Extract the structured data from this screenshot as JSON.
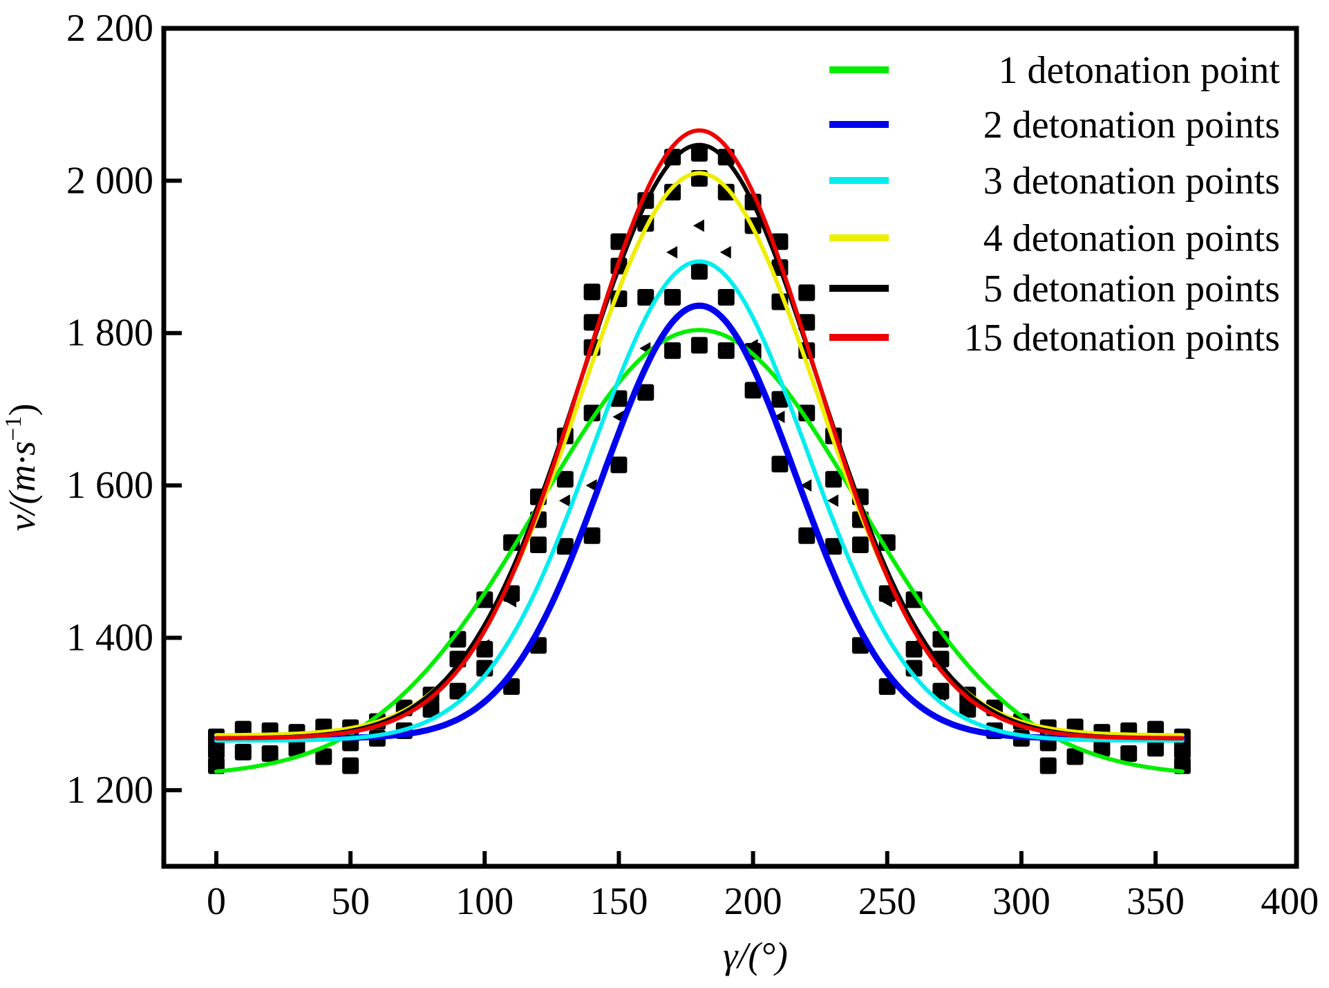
{
  "chart_data": {
    "type": "line",
    "title": "",
    "xlabel": "γ/(°)",
    "ylabel_main": "v/(m·s",
    "ylabel_sup": "−1",
    "ylabel_close": ")",
    "xlim": [
      -20,
      403
    ],
    "ylim": [
      1100,
      2200
    ],
    "grid": false,
    "legend_position": "top-right",
    "x_ticks": [
      0,
      50,
      100,
      150,
      200,
      250,
      300,
      350,
      400
    ],
    "x_tick_labels": [
      "0",
      "50",
      "100",
      "150",
      "200",
      "250",
      "300",
      "350",
      "400"
    ],
    "y_ticks": [
      1200,
      1400,
      1600,
      1800,
      2000,
      2200
    ],
    "y_tick_labels": [
      "1 200",
      "1 400",
      "1 600",
      "1 800",
      "2 000",
      "2 200"
    ],
    "series": [
      {
        "name": "1 detonation point",
        "color": "#00ee00",
        "model": {
          "base": 1218,
          "amplitude": 586,
          "center": 180,
          "sigma": 60
        }
      },
      {
        "name": "2 detonation points",
        "color": "#0000ee",
        "model": {
          "base": 1268,
          "amplitude": 568,
          "center": 180,
          "sigma": 36
        }
      },
      {
        "name": "3 detonation points",
        "color": "#00eeee",
        "model": {
          "base": 1265,
          "amplitude": 629,
          "center": 180,
          "sigma": 40
        }
      },
      {
        "name": "4 detonation points",
        "color": "#eeee00",
        "model": {
          "base": 1272,
          "amplitude": 738,
          "center": 180,
          "sigma": 44
        }
      },
      {
        "name": "5 detonation points",
        "color": "#000000",
        "model": {
          "base": 1268,
          "amplitude": 779,
          "center": 180,
          "sigma": 44
        }
      },
      {
        "name": "15 detonation points",
        "color": "#ee0000",
        "model": {
          "base": 1268,
          "amplitude": 798,
          "center": 180,
          "sigma": 43
        }
      }
    ],
    "x_range": [
      0,
      360
    ],
    "markers_square": [
      {
        "x": 0,
        "y": [
          1270,
          1252,
          1232
        ]
      },
      {
        "x": 10,
        "y": [
          1280,
          1250
        ]
      },
      {
        "x": 20,
        "y": [
          1278,
          1248
        ]
      },
      {
        "x": 30,
        "y": [
          1276,
          1255
        ]
      },
      {
        "x": 40,
        "y": [
          1283,
          1244
        ]
      },
      {
        "x": 50,
        "y": [
          1282,
          1262,
          1232
        ]
      },
      {
        "x": 60,
        "y": [
          1290,
          1268
        ]
      },
      {
        "x": 70,
        "y": [
          1308,
          1278
        ]
      },
      {
        "x": 80,
        "y": [
          1325,
          1306
        ]
      },
      {
        "x": 90,
        "y": [
          1398,
          1372,
          1330
        ]
      },
      {
        "x": 100,
        "y": [
          1450,
          1385,
          1360
        ]
      },
      {
        "x": 110,
        "y": [
          1525,
          1458,
          1336
        ]
      },
      {
        "x": 120,
        "y": [
          1585,
          1555,
          1522,
          1390
        ]
      },
      {
        "x": 130,
        "y": [
          1665,
          1608,
          1520
        ]
      },
      {
        "x": 140,
        "y": [
          1854,
          1814,
          1781,
          1695,
          1534
        ]
      },
      {
        "x": 150,
        "y": [
          1920,
          1888,
          1845,
          1714,
          1627
        ]
      },
      {
        "x": 160,
        "y": [
          1974,
          1944,
          1847,
          1722
        ]
      },
      {
        "x": 170,
        "y": [
          2031,
          1985,
          1847,
          1777
        ]
      },
      {
        "x": 180,
        "y": [
          2036,
          2003,
          1881,
          1784
        ]
      },
      {
        "x": 190,
        "y": [
          2031,
          1985,
          1847,
          1777
        ]
      },
      {
        "x": 200,
        "y": [
          1972,
          1941,
          1776,
          1725
        ]
      },
      {
        "x": 210,
        "y": [
          1920,
          1886,
          1841,
          1713,
          1628
        ]
      },
      {
        "x": 220,
        "y": [
          1853,
          1814,
          1777,
          1695,
          1534
        ]
      },
      {
        "x": 230,
        "y": [
          1665,
          1608,
          1520
        ]
      },
      {
        "x": 240,
        "y": [
          1585,
          1555,
          1522,
          1390
        ]
      },
      {
        "x": 250,
        "y": [
          1525,
          1458,
          1336
        ]
      },
      {
        "x": 260,
        "y": [
          1450,
          1385,
          1360
        ]
      },
      {
        "x": 270,
        "y": [
          1398,
          1372,
          1330
        ]
      },
      {
        "x": 280,
        "y": [
          1325,
          1306
        ]
      },
      {
        "x": 290,
        "y": [
          1308,
          1278
        ]
      },
      {
        "x": 300,
        "y": [
          1290,
          1268
        ]
      },
      {
        "x": 310,
        "y": [
          1282,
          1262,
          1232
        ]
      },
      {
        "x": 320,
        "y": [
          1283,
          1244
        ]
      },
      {
        "x": 330,
        "y": [
          1276,
          1255
        ]
      },
      {
        "x": 340,
        "y": [
          1278,
          1248
        ]
      },
      {
        "x": 350,
        "y": [
          1280,
          1255
        ]
      },
      {
        "x": 360,
        "y": [
          1270,
          1252,
          1232
        ]
      }
    ],
    "markers_triangle": [
      {
        "x": 90,
        "y": [
          1325
        ]
      },
      {
        "x": 100,
        "y": [
          1390
        ]
      },
      {
        "x": 110,
        "y": [
          1448
        ]
      },
      {
        "x": 130,
        "y": [
          1580
        ]
      },
      {
        "x": 140,
        "y": [
          1600
        ]
      },
      {
        "x": 150,
        "y": [
          1690
        ]
      },
      {
        "x": 160,
        "y": [
          1780
        ]
      },
      {
        "x": 170,
        "y": [
          1906
        ]
      },
      {
        "x": 180,
        "y": [
          1941
        ]
      },
      {
        "x": 190,
        "y": [
          1906
        ]
      },
      {
        "x": 200,
        "y": [
          1784
        ]
      },
      {
        "x": 210,
        "y": [
          1690
        ]
      },
      {
        "x": 220,
        "y": [
          1600
        ]
      },
      {
        "x": 230,
        "y": [
          1580
        ]
      },
      {
        "x": 250,
        "y": [
          1448
        ]
      },
      {
        "x": 260,
        "y": [
          1390
        ]
      },
      {
        "x": 270,
        "y": [
          1325
        ]
      }
    ]
  }
}
